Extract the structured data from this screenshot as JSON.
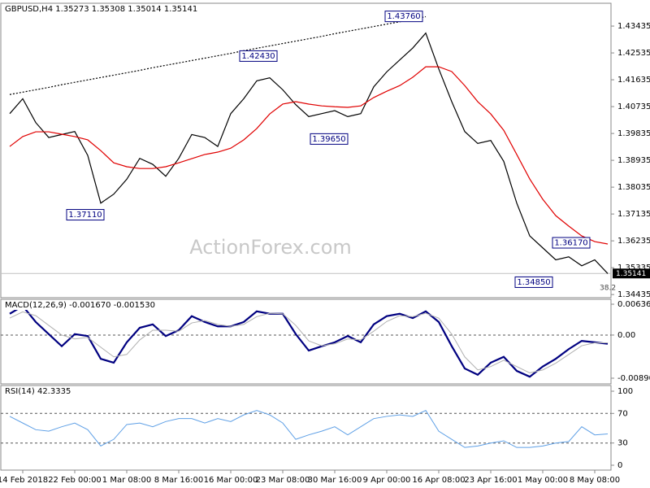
{
  "chart_data": [
    {
      "type": "line",
      "title": "GBPUSD,H4  1.35273 1.35308 1.35014 1.35141",
      "watermark": "ActionForex.com",
      "categories": [
        null,
        "14 Feb 2018",
        null,
        null,
        null,
        "22 Feb 00:00",
        null,
        null,
        null,
        "1 Mar 08:00",
        null,
        null,
        null,
        "8 Mar 16:00",
        null,
        null,
        null,
        "16 Mar 00:00",
        null,
        null,
        null,
        "23 Mar 08:00",
        null,
        null,
        null,
        "30 Mar 16:00",
        null,
        null,
        null,
        "9 Apr 00:00",
        null,
        null,
        null,
        "16 Apr 08:00",
        null,
        null,
        null,
        "23 Apr 16:00",
        null,
        null,
        null,
        "1 May 00:00",
        null,
        null,
        null,
        "8 May 08:00",
        null
      ],
      "series": [
        {
          "color": "#000000",
          "values": [
            1.405,
            1.41,
            1.402,
            1.397,
            1.398,
            1.399,
            1.391,
            1.375,
            1.378,
            1.383,
            1.39,
            1.388,
            1.384,
            1.39,
            1.398,
            1.397,
            1.394,
            1.405,
            1.41,
            1.416,
            1.417,
            1.413,
            1.408,
            1.404,
            1.405,
            1.406,
            1.404,
            1.405,
            1.414,
            1.419,
            1.423,
            1.427,
            1.432,
            1.42,
            1.409,
            1.399,
            1.395,
            1.396,
            1.389,
            1.375,
            1.364,
            1.36,
            1.356,
            1.357,
            1.354,
            1.356,
            1.3514
          ]
        },
        {
          "color": "#e00000",
          "values": [
            1.394,
            1.3973,
            1.3989,
            1.3989,
            1.3981,
            1.3973,
            1.3962,
            1.3926,
            1.3885,
            1.3872,
            1.3866,
            1.3866,
            1.3872,
            1.3885,
            1.3899,
            1.3913,
            1.3921,
            1.3934,
            1.3962,
            1.4,
            1.4049,
            1.4082,
            1.409,
            1.4082,
            1.4076,
            1.4073,
            1.4071,
            1.4076,
            1.4104,
            1.4125,
            1.4144,
            1.4172,
            1.4207,
            1.4207,
            1.4191,
            1.4144,
            1.409,
            1.4049,
            1.3994,
            1.3913,
            1.3831,
            1.3763,
            1.3708,
            1.3673,
            1.364,
            1.3621,
            1.3613
          ]
        },
        {
          "color": "#000000",
          "dashed": true,
          "values": [
            1.4114,
            1.4122,
            1.413,
            1.4138,
            1.4147,
            1.4155,
            1.4163,
            1.4171,
            1.4179,
            1.4187,
            1.4195,
            1.4204,
            1.4212,
            1.422,
            1.4228,
            1.4236,
            1.4244,
            1.4252,
            1.4261,
            1.4269,
            1.4277,
            1.4285,
            1.4293,
            1.4301,
            1.4309,
            1.4318,
            1.4326,
            1.4334,
            1.4342,
            1.435,
            1.4358,
            1.4366,
            1.4375,
            null,
            null,
            null,
            null,
            null,
            null,
            null,
            null,
            null,
            null,
            null,
            null,
            null,
            null
          ]
        }
      ],
      "ylim": [
        1.3433,
        1.442
      ],
      "yticks": [
        1.43435,
        1.42535,
        1.41635,
        1.40735,
        1.39835,
        1.38935,
        1.38035,
        1.37135,
        1.36235,
        1.35335,
        1.34435
      ],
      "grid": false,
      "last_price": {
        "value": 1.35141,
        "label": "1.35141"
      },
      "annotations": [
        {
          "value": 1.3711,
          "label": "1.37110"
        },
        {
          "value": 1.4243,
          "label": "1.42430"
        },
        {
          "value": 1.3965,
          "label": "1.39650"
        },
        {
          "value": 1.4376,
          "label": "1.43760"
        },
        {
          "value": 1.3617,
          "label": "1.36170"
        },
        {
          "value": 1.3485,
          "label": "1.34850"
        }
      ],
      "notes": [
        "38.2"
      ]
    },
    {
      "type": "line",
      "title": "MACD(12,26,9) -0.001670 -0.001530",
      "series": [
        {
          "color": "#000080",
          "width": 2.2,
          "values": [
            0.0044,
            0.006,
            0.0027,
            0.0002,
            -0.0023,
            0.0002,
            -0.0002,
            -0.0049,
            -0.0057,
            -0.0015,
            0.0015,
            0.0022,
            -0.0002,
            0.001,
            0.0039,
            0.0027,
            0.0018,
            0.0018,
            0.0027,
            0.0049,
            0.0044,
            0.0044,
            0.0002,
            -0.0032,
            -0.0023,
            -0.0015,
            -0.0002,
            -0.0015,
            0.0022,
            0.0039,
            0.0044,
            0.0035,
            0.0049,
            0.0027,
            -0.0023,
            -0.0069,
            -0.0082,
            -0.0057,
            -0.0045,
            -0.0074,
            -0.0086,
            -0.0065,
            -0.0049,
            -0.0029,
            -0.0012,
            -0.0015,
            -0.0018
          ]
        },
        {
          "color": "#b0b0b0",
          "width": 1,
          "values": [
            0.0035,
            0.0048,
            0.004,
            0.002,
            0.0,
            -0.0008,
            -0.0005,
            -0.0025,
            -0.0045,
            -0.004,
            -0.001,
            0.001,
            0.001,
            0.0008,
            0.0025,
            0.003,
            0.0022,
            0.0018,
            0.0022,
            0.0038,
            0.0045,
            0.0044,
            0.002,
            -0.0012,
            -0.0022,
            -0.0018,
            -0.0008,
            -0.001,
            0.0008,
            0.0028,
            0.004,
            0.0038,
            0.0045,
            0.0035,
            0.0002,
            -0.0045,
            -0.0072,
            -0.0065,
            -0.0052,
            -0.0065,
            -0.0078,
            -0.0072,
            -0.0058,
            -0.004,
            -0.0022,
            -0.0016,
            -0.0016
          ]
        }
      ],
      "ylim": [
        -0.01008,
        0.00738
      ],
      "yticks": [
        0.006368,
        {
          "value": 0,
          "label": "0.00"
        },
        -0.008903
      ],
      "grid": true
    },
    {
      "type": "line",
      "title": "RSI(14) 42.3335",
      "series": [
        {
          "color": "#5fa0e6",
          "width": 1,
          "values": [
            66,
            57,
            48,
            46,
            52,
            57,
            48,
            26,
            35,
            55,
            57,
            52,
            59,
            63,
            63,
            57,
            63,
            59,
            68,
            74,
            68,
            57,
            35,
            41,
            46,
            52,
            41,
            52,
            63,
            66,
            68,
            66,
            74,
            46,
            35,
            24,
            26,
            30,
            33,
            24,
            24,
            26,
            30,
            32,
            52,
            41,
            42.3
          ]
        }
      ],
      "ylim": [
        -6.6,
        107.7
      ],
      "yticks": [
        100,
        70,
        30,
        0
      ],
      "grid": true
    }
  ]
}
